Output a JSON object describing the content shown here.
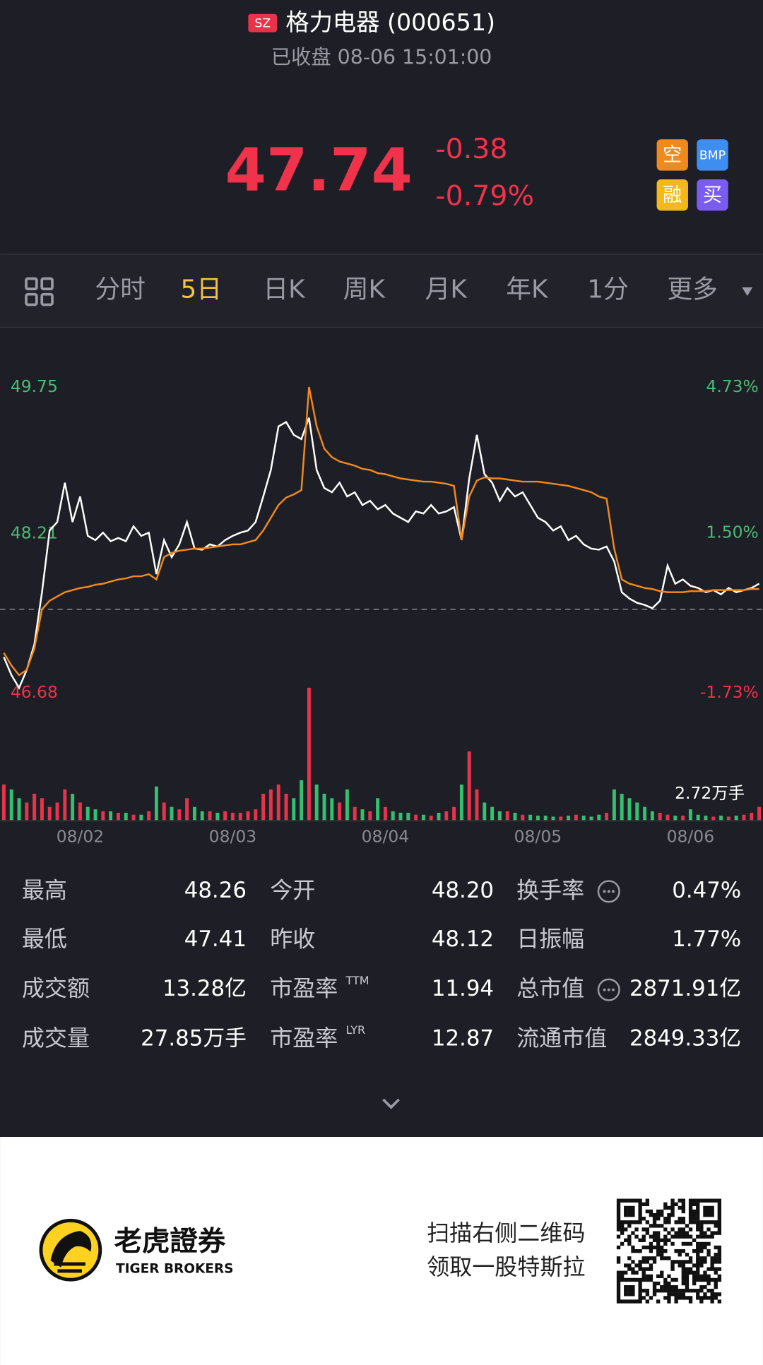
{
  "header": {
    "exchange": "SZ",
    "title": "格力电器 (000651)",
    "status": "已收盘 08-06 15:01:00"
  },
  "quote": {
    "price": "47.74",
    "change": "-0.38",
    "change_pct": "-0.79%",
    "badges": [
      "空",
      "BMP",
      "融",
      "买"
    ]
  },
  "tabs": [
    "分时",
    "5日",
    "日K",
    "周K",
    "月K",
    "年K",
    "1分",
    "更多"
  ],
  "active_tab": 1,
  "chart_data": {
    "type": "line",
    "categories": [
      null,
      null,
      null,
      null,
      null,
      null,
      null,
      null,
      null,
      null,
      "08/02",
      null,
      null,
      null,
      null,
      null,
      null,
      null,
      null,
      null,
      null,
      null,
      null,
      null,
      null,
      null,
      null,
      null,
      null,
      null,
      "08/03",
      null,
      null,
      null,
      null,
      null,
      null,
      null,
      null,
      null,
      null,
      null,
      null,
      null,
      null,
      null,
      null,
      null,
      null,
      null,
      "08/04",
      null,
      null,
      null,
      null,
      null,
      null,
      null,
      null,
      null,
      null,
      null,
      null,
      null,
      null,
      null,
      null,
      null,
      null,
      null,
      "08/05",
      null,
      null,
      null,
      null,
      null,
      null,
      null,
      null,
      null,
      null,
      null,
      null,
      null,
      null,
      null,
      null,
      null,
      null,
      null,
      "08/06",
      null,
      null,
      null,
      null,
      null,
      null,
      null,
      null,
      null
    ],
    "series": [
      {
        "color": "#ffffff",
        "values": [
          47.05,
          46.88,
          46.76,
          46.93,
          47.17,
          47.66,
          48.24,
          48.32,
          48.69,
          48.32,
          48.56,
          48.19,
          48.15,
          48.22,
          48.14,
          48.17,
          48.14,
          48.28,
          48.19,
          48.22,
          47.83,
          48.15,
          47.99,
          48.11,
          48.32,
          48.07,
          48.06,
          48.11,
          48.09,
          48.15,
          48.19,
          48.22,
          48.24,
          48.32,
          48.56,
          48.81,
          49.22,
          49.26,
          49.14,
          49.1,
          49.3,
          48.81,
          48.64,
          48.6,
          48.69,
          48.56,
          48.6,
          48.48,
          48.52,
          48.44,
          48.48,
          48.4,
          48.36,
          48.32,
          48.42,
          48.4,
          48.48,
          48.4,
          48.42,
          48.46,
          48.15,
          48.73,
          49.14,
          48.77,
          48.69,
          48.52,
          48.64,
          48.56,
          48.6,
          48.48,
          48.36,
          48.32,
          48.24,
          48.28,
          48.15,
          48.19,
          48.11,
          48.07,
          48.06,
          48.09,
          47.95,
          47.66,
          47.6,
          47.56,
          47.54,
          47.51,
          47.58,
          47.91,
          47.74,
          47.78,
          47.72,
          47.7,
          47.66,
          47.68,
          47.64,
          47.7,
          47.66,
          47.68,
          47.7,
          47.74
        ]
      },
      {
        "color": "#f0891e",
        "values": [
          47.09,
          46.97,
          46.88,
          46.93,
          47.13,
          47.5,
          47.58,
          47.62,
          47.66,
          47.68,
          47.7,
          47.71,
          47.73,
          47.74,
          47.76,
          47.78,
          47.79,
          47.81,
          47.81,
          47.83,
          47.78,
          47.99,
          48.03,
          48.05,
          48.06,
          48.07,
          48.07,
          48.08,
          48.09,
          48.1,
          48.11,
          48.11,
          48.13,
          48.15,
          48.24,
          48.36,
          48.48,
          48.55,
          48.58,
          48.62,
          49.59,
          49.22,
          49.01,
          48.93,
          48.89,
          48.87,
          48.85,
          48.82,
          48.81,
          48.78,
          48.77,
          48.75,
          48.73,
          48.72,
          48.71,
          48.7,
          48.7,
          48.69,
          48.68,
          48.66,
          48.15,
          48.56,
          48.71,
          48.74,
          48.73,
          48.73,
          48.72,
          48.71,
          48.7,
          48.7,
          48.7,
          48.69,
          48.68,
          48.67,
          48.66,
          48.64,
          48.62,
          48.6,
          48.56,
          48.54,
          48.07,
          47.78,
          47.74,
          47.72,
          47.7,
          47.69,
          47.67,
          47.66,
          47.66,
          47.66,
          47.67,
          47.67,
          47.67,
          47.68,
          47.68,
          47.68,
          47.68,
          47.68,
          47.69,
          47.69
        ]
      }
    ],
    "ylim": [
      46.68,
      49.75
    ],
    "yticks": [
      49.75,
      48.21,
      46.68
    ],
    "y2lim": [
      -1.73,
      4.73
    ],
    "y2ticks": [
      {
        "value": 4.73,
        "label": "4.73%"
      },
      {
        "value": 1.5,
        "label": "1.50%"
      },
      {
        "value": -1.73,
        "label": "-1.73%"
      }
    ],
    "reference_line": 47.5,
    "up_color": "#e8344a",
    "down_color": "#35c06f",
    "volume": {
      "values": [
        0.73,
        0.63,
        0.45,
        0.36,
        0.54,
        0.45,
        0.27,
        0.36,
        0.63,
        0.54,
        0.36,
        0.27,
        0.22,
        0.18,
        0.18,
        0.15,
        0.15,
        0.11,
        0.11,
        0.18,
        0.69,
        0.36,
        0.27,
        0.22,
        0.45,
        0.27,
        0.18,
        0.18,
        0.15,
        0.18,
        0.15,
        0.15,
        0.18,
        0.22,
        0.54,
        0.63,
        0.73,
        0.54,
        0.45,
        0.82,
        2.72,
        0.73,
        0.54,
        0.45,
        0.36,
        0.63,
        0.27,
        0.22,
        0.18,
        0.45,
        0.27,
        0.18,
        0.15,
        0.15,
        0.11,
        0.11,
        0.09,
        0.15,
        0.18,
        0.27,
        0.73,
        1.41,
        0.63,
        0.36,
        0.27,
        0.18,
        0.18,
        0.15,
        0.11,
        0.11,
        0.09,
        0.09,
        0.07,
        0.07,
        0.09,
        0.11,
        0.09,
        0.07,
        0.11,
        0.15,
        0.63,
        0.54,
        0.45,
        0.36,
        0.27,
        0.18,
        0.15,
        0.11,
        0.09,
        0.09,
        0.22,
        0.11,
        0.09,
        0.07,
        0.09,
        0.07,
        0.09,
        0.11,
        0.15,
        0.27
      ],
      "ylim": [
        0,
        2.72
      ],
      "yticks": [
        {
          "value": 2.72,
          "label": "2.72万手"
        }
      ]
    }
  },
  "stats": [
    [
      {
        "label": "最高",
        "value": "48.26"
      },
      {
        "label": "今开",
        "value": "48.20"
      },
      {
        "label": "换手率",
        "value": "0.47%"
      }
    ],
    [
      {
        "label": "最低",
        "value": "47.41"
      },
      {
        "label": "昨收",
        "value": "48.12"
      },
      {
        "label": "日振幅",
        "value": "1.77%"
      }
    ],
    [
      {
        "label": "成交额",
        "value": "13.28亿"
      },
      {
        "label": "市盈率",
        "sup": "TTM",
        "value": "11.94"
      },
      {
        "label": "总市值",
        "value": "2871.91亿"
      }
    ],
    [
      {
        "label": "成交量",
        "value": "27.85万手"
      },
      {
        "label": "市盈率",
        "sup": "LYR",
        "value": "12.87"
      },
      {
        "label": "流通市值",
        "value": "2849.33亿"
      }
    ]
  ],
  "footer": {
    "brand": "老虎證券",
    "brand_en": "TIGER BROKERS",
    "promo": [
      "扫描右侧二维码",
      "领取一股特斯拉"
    ]
  }
}
